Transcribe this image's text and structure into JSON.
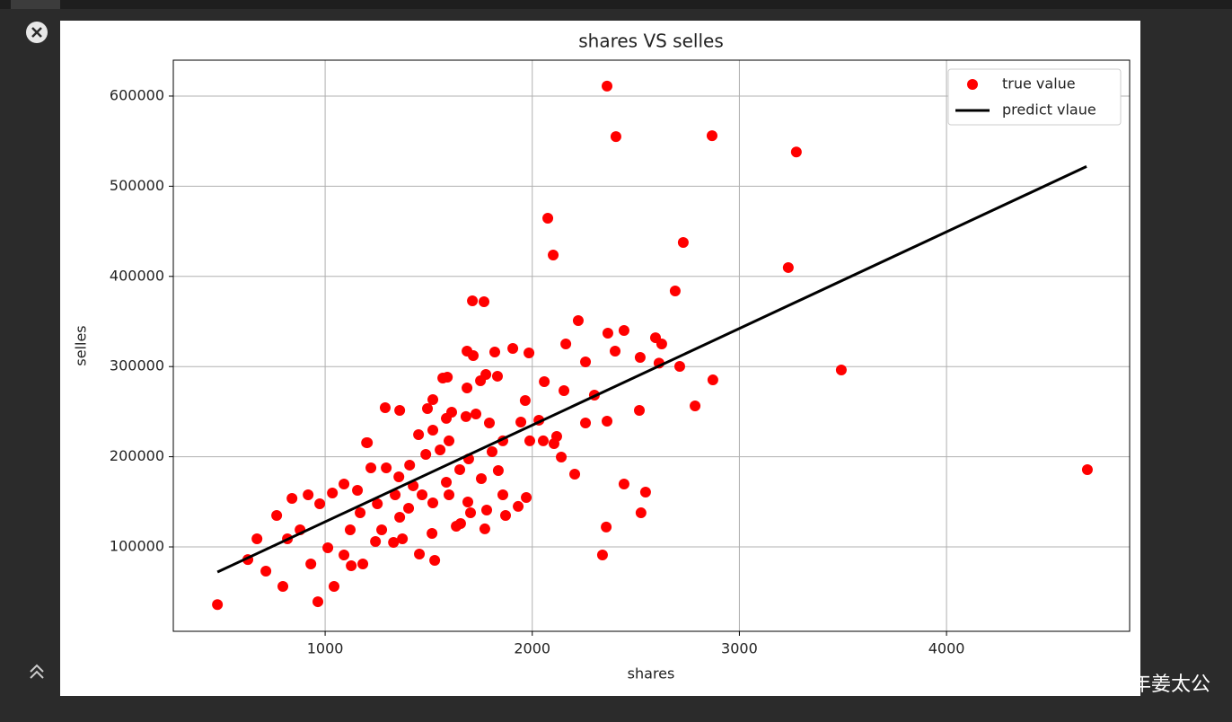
{
  "chart_data": {
    "type": "scatter",
    "title": "shares VS selles",
    "x_label": "shares",
    "y_label": "selles",
    "xlim": [
      267,
      4884
    ],
    "ylim": [
      6400,
      639800
    ],
    "xticks": [
      1000,
      2000,
      3000,
      4000
    ],
    "yticks": [
      100000,
      200000,
      300000,
      400000,
      500000,
      600000
    ],
    "grid": true,
    "legend": "upper right",
    "series": [
      {
        "name": "true value",
        "color": "#ff0000",
        "type": "scatter",
        "x": [
          480,
          4680,
          2361,
          2404,
          2868,
          3275,
          2075,
          2101,
          2729,
          3236,
          3492,
          2690,
          1711,
          1767,
          2222,
          965,
          1043,
          796,
          714,
          627,
          671,
          2339,
          2357,
          2443,
          2547,
          2525,
          2517,
          2786,
          2872,
          2712,
          2612,
          2521,
          2400,
          2443,
          2365,
          2625,
          2595,
          2361,
          2257,
          2153,
          2058,
          2162,
          2257,
          2300,
          2205,
          1984,
          1906,
          1819,
          1685,
          1715,
          1590,
          1568,
          1520,
          1776,
          1750,
          1832,
          1685,
          1680,
          1494,
          1290,
          1360,
          1204,
          1966,
          1945,
          1858,
          1806,
          1988,
          2053,
          2105,
          2118,
          2140,
          2032,
          1858,
          1971,
          1932,
          1871,
          1780,
          1771,
          1654,
          1633,
          1702,
          1689,
          1754,
          1836,
          1650,
          1585,
          1520,
          1516,
          1529,
          1455,
          1373,
          1330,
          1243,
          1182,
          1126,
          1091,
          1013,
          931,
          879,
          818,
          766,
          840,
          918,
          974,
          1035,
          1091,
          1156,
          1221,
          1200,
          1295,
          1356,
          1408,
          1451,
          1520,
          1598,
          1555,
          1486,
          1425,
          1338,
          1252,
          1169,
          1121,
          1273,
          1360,
          1403,
          1468,
          1598,
          1693,
          1793,
          1728,
          1611,
          1585
        ],
        "values": [
          36000,
          185700,
          611000,
          555000,
          556000,
          538000,
          464500,
          423700,
          437600,
          409800,
          296200,
          383900,
          372900,
          371900,
          351000,
          39200,
          56200,
          56200,
          73100,
          86000,
          109000,
          91000,
          122000,
          169700,
          160800,
          137800,
          251400,
          256400,
          285200,
          300200,
          303800,
          310200,
          317100,
          340000,
          337000,
          325100,
          332000,
          239400,
          237400,
          273300,
          283300,
          325100,
          305200,
          268300,
          180700,
          315100,
          320100,
          316100,
          317100,
          312100,
          288200,
          287200,
          263300,
          291200,
          284300,
          289300,
          276300,
          244500,
          253400,
          254400,
          251400,
          215600,
          262400,
          238500,
          217600,
          205600,
          217600,
          217600,
          214600,
          222500,
          199600,
          240500,
          157800,
          154800,
          144900,
          134900,
          140900,
          120000,
          125900,
          122900,
          137900,
          149800,
          175700,
          184700,
          185700,
          171700,
          148800,
          114900,
          85100,
          92000,
          109000,
          105000,
          106000,
          81100,
          79100,
          91000,
          99000,
          81100,
          118900,
          109000,
          134900,
          153800,
          157800,
          147800,
          159800,
          169700,
          162800,
          187700,
          215600,
          187700,
          177700,
          190700,
          224500,
          229500,
          217600,
          207600,
          202600,
          167800,
          157800,
          147800,
          137900,
          118900,
          118900,
          132900,
          142900,
          157800,
          157800,
          197600,
          237500,
          247400,
          249400,
          242500
        ]
      },
      {
        "name": "predict vlaue",
        "color": "#000000",
        "type": "line",
        "x": [
          480,
          4676
        ],
        "values": [
          72100,
          521900
        ]
      }
    ]
  },
  "watermark": "掘金技术社区 @ 少年姜太公"
}
